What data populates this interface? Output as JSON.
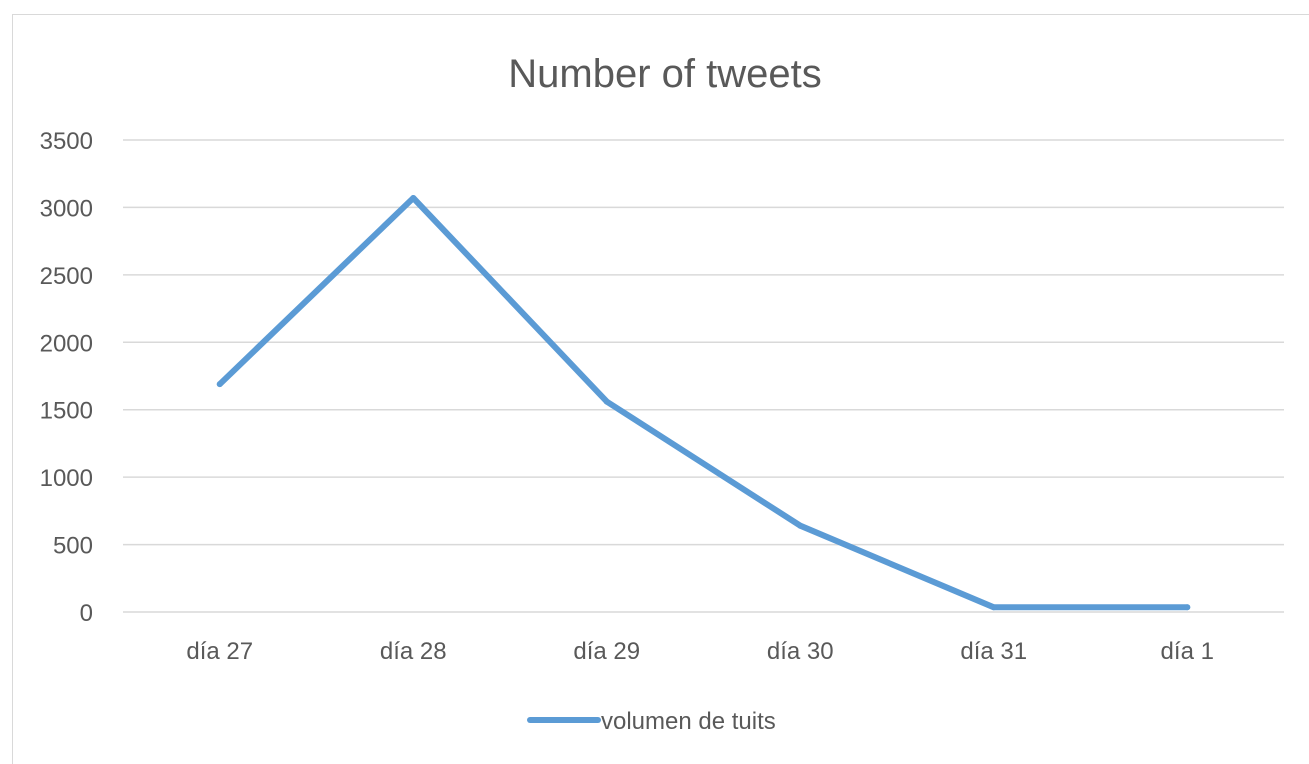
{
  "chart_data": {
    "type": "line",
    "title": "Number of tweets",
    "xlabel": "",
    "ylabel": "",
    "categories": [
      "día 27",
      "día 28",
      "día 29",
      "día 30",
      "día 31",
      "día 1"
    ],
    "series": [
      {
        "name": "volumen de tuits",
        "values": [
          1690,
          3070,
          1560,
          640,
          35,
          35
        ],
        "color": "#5b9bd5"
      }
    ],
    "ylim": [
      0,
      3500
    ],
    "yticks": [
      0,
      500,
      1000,
      1500,
      2000,
      2500,
      3000,
      3500
    ],
    "grid": true,
    "legend_position": "bottom",
    "gridline_color": "#d9d9d9",
    "text_color": "#595959"
  }
}
